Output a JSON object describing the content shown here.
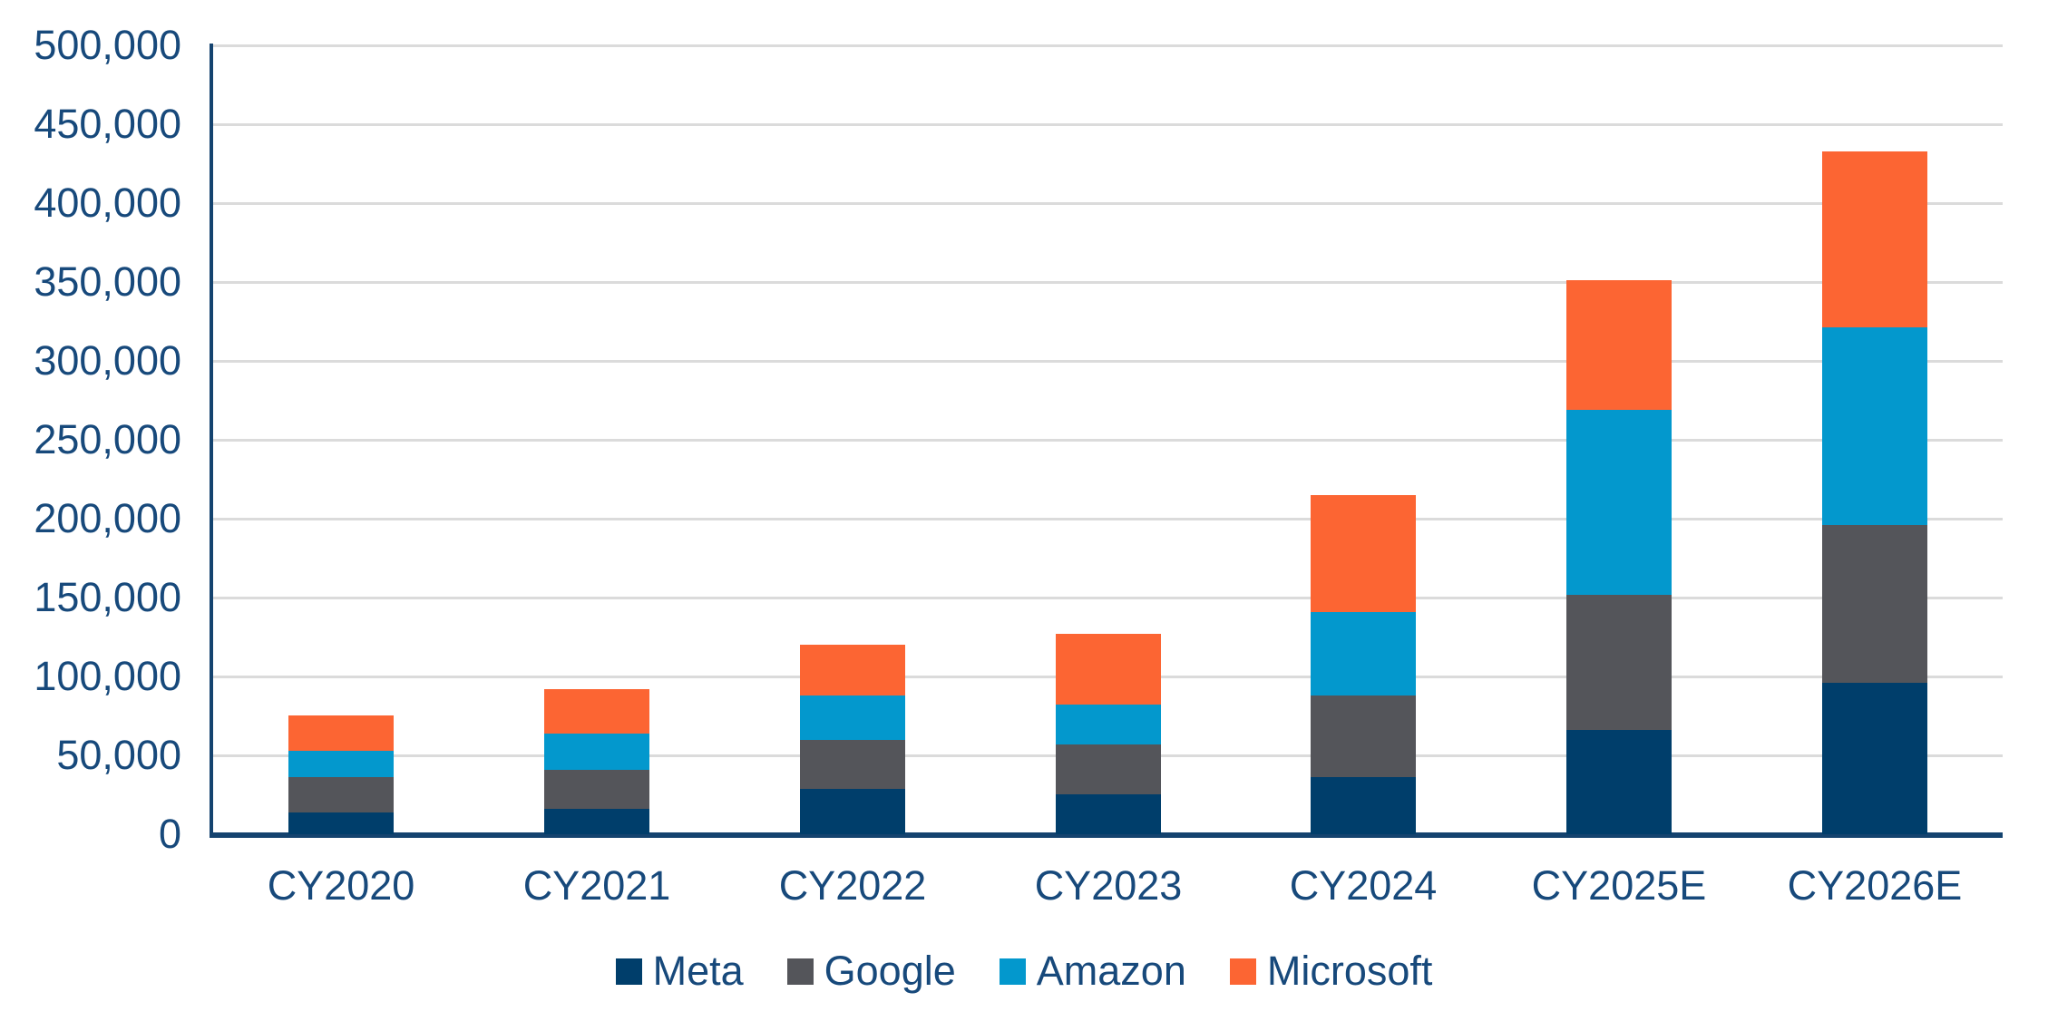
{
  "chart_data": {
    "type": "bar",
    "stacked": true,
    "title": "",
    "categories": [
      "CY2020",
      "CY2021",
      "CY2022",
      "CY2023",
      "CY2024",
      "CY2025E",
      "CY2026E"
    ],
    "series": [
      {
        "name": "Meta",
        "color": "#003E6B",
        "values": [
          14000,
          16000,
          29000,
          25000,
          36000,
          66000,
          96000
        ]
      },
      {
        "name": "Google",
        "color": "#54555A",
        "values": [
          22000,
          25000,
          31000,
          32000,
          52000,
          86000,
          100000
        ]
      },
      {
        "name": "Amazon",
        "color": "#0398CD",
        "values": [
          17000,
          23000,
          28000,
          25000,
          53000,
          117000,
          125000
        ]
      },
      {
        "name": "Microsoft",
        "color": "#FC6533",
        "values": [
          22000,
          28000,
          32000,
          45000,
          74000,
          82000,
          112000
        ]
      }
    ],
    "totals": [
      75000,
      92000,
      120000,
      127000,
      215000,
      351000,
      433000
    ],
    "xlabel": "",
    "ylabel": "",
    "ylim": [
      0,
      500000
    ],
    "ytick_interval": 50000,
    "ytick_labels": [
      "0",
      "50,000",
      "100,000",
      "150,000",
      "200,000",
      "250,000",
      "300,000",
      "350,000",
      "400,000",
      "450,000",
      "500,000"
    ],
    "grid": "horizontal",
    "legend_position": "bottom"
  },
  "colors": {
    "axis_text": "#17497B",
    "axis_line": "#14436F",
    "gridline": "#DBDBDB",
    "background": "#FFFFFF"
  }
}
